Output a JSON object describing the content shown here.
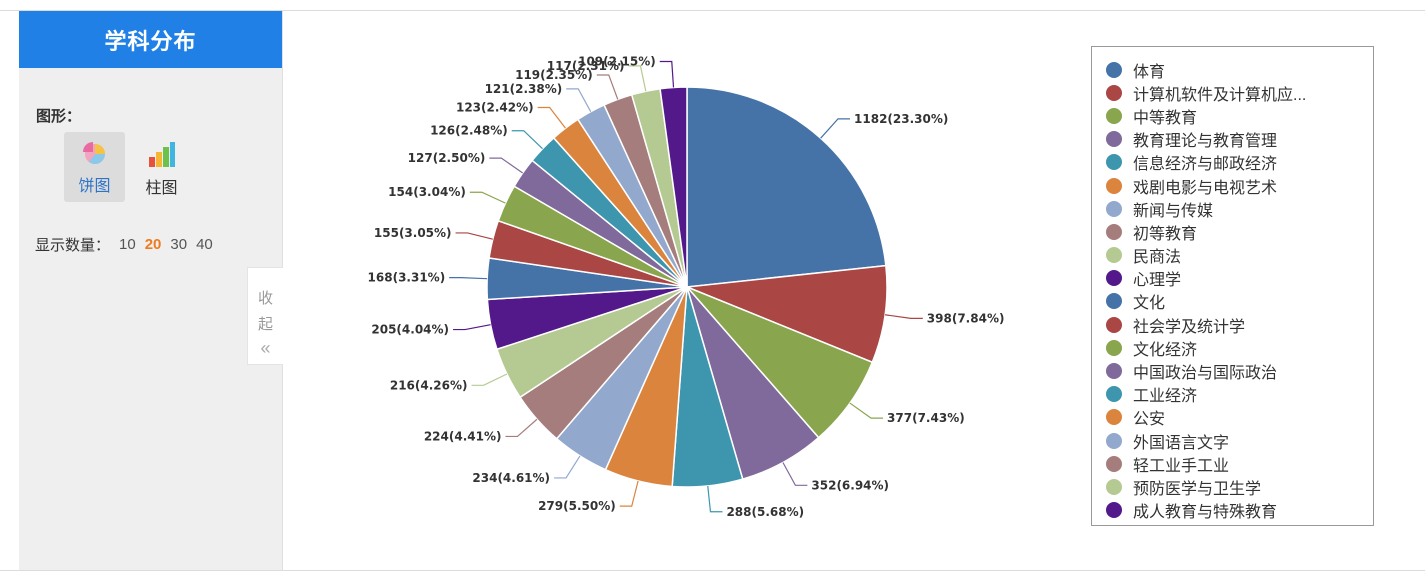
{
  "sidebar": {
    "title": "学科分布",
    "shape_label": "图形：",
    "chart_types": [
      {
        "label": "饼图",
        "active": true
      },
      {
        "label": "柱图",
        "active": false
      }
    ],
    "count_label": "显示数量：",
    "count_options": [
      "10",
      "20",
      "30",
      "40"
    ],
    "count_selected": "20",
    "collapse_label_1": "收",
    "collapse_label_2": "起",
    "collapse_arrows": "«"
  },
  "chart_data": {
    "type": "pie",
    "slices": [
      {
        "name": "体育",
        "value": 1182,
        "label": "1182(23.30%)",
        "color": "#4572a7"
      },
      {
        "name": "计算机软件及计算机应...",
        "value": 398,
        "label": "398(7.84%)",
        "color": "#aa4643"
      },
      {
        "name": "中等教育",
        "value": 377,
        "label": "377(7.43%)",
        "color": "#89a54e"
      },
      {
        "name": "教育理论与教育管理",
        "value": 352,
        "label": "352(6.94%)",
        "color": "#80699b"
      },
      {
        "name": "信息经济与邮政经济",
        "value": 288,
        "label": "288(5.68%)",
        "color": "#3d96ae"
      },
      {
        "name": "戏剧电影与电视艺术",
        "value": 279,
        "label": "279(5.50%)",
        "color": "#db843d"
      },
      {
        "name": "新闻与传媒",
        "value": 234,
        "label": "234(4.61%)",
        "color": "#92a8cd"
      },
      {
        "name": "初等教育",
        "value": 224,
        "label": "224(4.41%)",
        "color": "#a47d7c"
      },
      {
        "name": "民商法",
        "value": 216,
        "label": "216(4.26%)",
        "color": "#b5ca92"
      },
      {
        "name": "心理学",
        "value": 205,
        "label": "205(4.04%)",
        "color": "#53198a"
      },
      {
        "name": "文化",
        "value": 168,
        "label": "168(3.31%)",
        "color": "#4572a7"
      },
      {
        "name": "社会学及统计学",
        "value": 155,
        "label": "155(3.05%)",
        "color": "#aa4643"
      },
      {
        "name": "文化经济",
        "value": 154,
        "label": "154(3.04%)",
        "color": "#89a54e"
      },
      {
        "name": "中国政治与国际政治",
        "value": 127,
        "label": "127(2.50%)",
        "color": "#80699b"
      },
      {
        "name": "工业经济",
        "value": 126,
        "label": "126(2.48%)",
        "color": "#3d96ae"
      },
      {
        "name": "公安",
        "value": 123,
        "label": "123(2.42%)",
        "color": "#db843d"
      },
      {
        "name": "外国语言文字",
        "value": 121,
        "label": "121(2.38%)",
        "color": "#92a8cd"
      },
      {
        "name": "轻工业手工业",
        "value": 119,
        "label": "119(2.35%)",
        "color": "#a47d7c"
      },
      {
        "name": "预防医学与卫生学",
        "value": 117,
        "label": "117(2.31%)",
        "color": "#b5ca92"
      },
      {
        "name": "成人教育与特殊教育",
        "value": 109,
        "label": "109(2.15%)",
        "color": "#53198a"
      }
    ]
  }
}
